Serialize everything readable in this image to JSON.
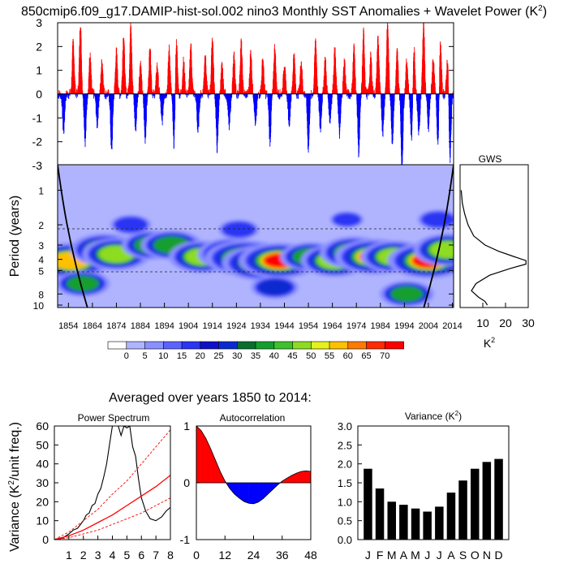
{
  "title": "850cmip6.f09_g17.DAMIP-hist-sol.002 nino3 Monthly SST Anomalies + Wavelet Power (K",
  "title_sup": "2",
  "title_close": ")",
  "subtitle": "Averaged over years 1850 to 2014:",
  "colors": {
    "positive": "#ff0000",
    "negative": "#0000ff",
    "grid": "#000000"
  },
  "chart_data": [
    {
      "id": "anomalies",
      "type": "bar",
      "x_range": [
        1850,
        2014
      ],
      "ylim": [
        -3,
        3
      ],
      "yticks": [
        "-3",
        "-2",
        "-1",
        "0",
        "1",
        "2",
        "3"
      ],
      "note": "monthly anomaly bars; positive red, negative blue",
      "events": [
        {
          "year": 1856,
          "value": 2.2
        },
        {
          "year": 1859,
          "value": 3.0
        },
        {
          "year": 1863,
          "value": 1.6
        },
        {
          "year": 1868,
          "value": 1.4
        },
        {
          "year": 1874,
          "value": 1.8
        },
        {
          "year": 1877,
          "value": 2.5
        },
        {
          "year": 1880,
          "value": 3.0
        },
        {
          "year": 1884,
          "value": 1.3
        },
        {
          "year": 1888,
          "value": 2.0
        },
        {
          "year": 1891,
          "value": 1.2
        },
        {
          "year": 1896,
          "value": 1.9
        },
        {
          "year": 1899,
          "value": 2.3
        },
        {
          "year": 1902,
          "value": 1.4
        },
        {
          "year": 1905,
          "value": 2.1
        },
        {
          "year": 1911,
          "value": 1.7
        },
        {
          "year": 1914,
          "value": 2.4
        },
        {
          "year": 1918,
          "value": 1.2
        },
        {
          "year": 1923,
          "value": 1.6
        },
        {
          "year": 1926,
          "value": 2.2
        },
        {
          "year": 1930,
          "value": 1.8
        },
        {
          "year": 1935,
          "value": 1.5
        },
        {
          "year": 1940,
          "value": 2.0
        },
        {
          "year": 1944,
          "value": 1.3
        },
        {
          "year": 1948,
          "value": 1.7
        },
        {
          "year": 1951,
          "value": 1.4
        },
        {
          "year": 1957,
          "value": 2.3
        },
        {
          "year": 1961,
          "value": 1.5
        },
        {
          "year": 1965,
          "value": 1.9
        },
        {
          "year": 1969,
          "value": 1.4
        },
        {
          "year": 1973,
          "value": 2.0
        },
        {
          "year": 1977,
          "value": 2.6
        },
        {
          "year": 1980,
          "value": 1.6
        },
        {
          "year": 1983,
          "value": 2.4
        },
        {
          "year": 1987,
          "value": 3.0
        },
        {
          "year": 1991,
          "value": 1.8
        },
        {
          "year": 1995,
          "value": 1.4
        },
        {
          "year": 1998,
          "value": 2.0
        },
        {
          "year": 2002,
          "value": 3.0
        },
        {
          "year": 2006,
          "value": 1.5
        },
        {
          "year": 2009,
          "value": 2.2
        },
        {
          "year": 2012,
          "value": 1.6
        },
        {
          "year": 1852,
          "value": -1.6
        },
        {
          "year": 1861,
          "value": -2.0
        },
        {
          "year": 1866,
          "value": -1.3
        },
        {
          "year": 1872,
          "value": -2.4
        },
        {
          "year": 1882,
          "value": -1.5
        },
        {
          "year": 1886,
          "value": -1.9
        },
        {
          "year": 1893,
          "value": -1.2
        },
        {
          "year": 1898,
          "value": -2.2
        },
        {
          "year": 1908,
          "value": -1.6
        },
        {
          "year": 1916,
          "value": -2.3
        },
        {
          "year": 1921,
          "value": -1.4
        },
        {
          "year": 1932,
          "value": -1.3
        },
        {
          "year": 1938,
          "value": -2.0
        },
        {
          "year": 1946,
          "value": -1.2
        },
        {
          "year": 1954,
          "value": -2.3
        },
        {
          "year": 1959,
          "value": -1.5
        },
        {
          "year": 1963,
          "value": -1.1
        },
        {
          "year": 1967,
          "value": -1.7
        },
        {
          "year": 1975,
          "value": -2.5
        },
        {
          "year": 1985,
          "value": -1.6
        },
        {
          "year": 1989,
          "value": -2.0
        },
        {
          "year": 1993,
          "value": -3.0
        },
        {
          "year": 1997,
          "value": -1.9
        },
        {
          "year": 2000,
          "value": -1.7
        },
        {
          "year": 2004,
          "value": -1.5
        },
        {
          "year": 2008,
          "value": -2.1
        },
        {
          "year": 2013,
          "value": -2.8
        }
      ]
    },
    {
      "id": "wavelet",
      "type": "heatmap",
      "ylabel": "Period (years)",
      "yticks": [
        "1",
        "2",
        "3",
        "4",
        "5",
        "8",
        "10"
      ],
      "xticks": [
        "1854",
        "1864",
        "1874",
        "1884",
        "1894",
        "1904",
        "1914",
        "1924",
        "1934",
        "1944",
        "1954",
        "1964",
        "1974",
        "1984",
        "1994",
        "2004",
        "2014"
      ],
      "yscale": "log",
      "dashed_periods": [
        2,
        5
      ]
    },
    {
      "id": "gws",
      "type": "line",
      "title": "GWS",
      "xlabel": "K",
      "xlabel_sup": "2",
      "xticks": [
        "10",
        "20",
        "30"
      ],
      "x_range": [
        0,
        30
      ],
      "period": [
        1,
        1.3,
        1.6,
        2,
        2.5,
        3,
        3.4,
        3.8,
        4.1,
        4.4,
        4.8,
        5.5,
        6.5,
        7.5,
        8.5,
        9.3,
        10
      ],
      "power": [
        0.5,
        1,
        2,
        3.5,
        6,
        11,
        17,
        24,
        29,
        29,
        22,
        13,
        7,
        5,
        8,
        11,
        12
      ]
    },
    {
      "id": "colorbar",
      "type": "heatmap",
      "labels": [
        "0",
        "5",
        "10",
        "15",
        "20",
        "25",
        "30",
        "35",
        "40",
        "45",
        "50",
        "55",
        "60",
        "65",
        "70"
      ],
      "colors": [
        "#ffffff",
        "#b0b4ff",
        "#8a90ff",
        "#5b63ff",
        "#2b35f4",
        "#1010c8",
        "#0a2ad0",
        "#0a6e2e",
        "#159e2e",
        "#3cc22c",
        "#8ddc22",
        "#e6f01c",
        "#ffc000",
        "#ff7a00",
        "#ff2a00",
        "#ff0000"
      ]
    },
    {
      "id": "power_spectrum",
      "type": "line",
      "title": "Power Spectrum",
      "ylabel": "Variance (K",
      "ylabel_sup": "2",
      "ylabel_tail": "/unit freq.)",
      "xticks": [
        "1",
        "2",
        "3",
        "4",
        "5",
        "6",
        "7",
        "8"
      ],
      "yticks": [
        "0",
        "10",
        "20",
        "30",
        "40",
        "50",
        "60"
      ],
      "xlim": [
        0,
        8
      ],
      "ylim": [
        0,
        60
      ],
      "series": [
        {
          "style": "black",
          "x": [
            0.3,
            0.6,
            1,
            1.3,
            1.6,
            2,
            2.2,
            2.4,
            2.6,
            2.8,
            3,
            3.2,
            3.4,
            3.6,
            3.8,
            4,
            4.2,
            4.4,
            4.6,
            4.8,
            5,
            5.2,
            5.4,
            5.6,
            5.8,
            6,
            6.3,
            6.6,
            7,
            7.4,
            7.7,
            8
          ],
          "y": [
            0.3,
            1,
            3,
            5,
            6,
            10,
            13,
            14,
            18,
            19,
            24,
            27,
            33,
            40,
            50,
            60,
            60,
            60,
            55,
            60,
            59,
            60,
            49,
            44,
            32,
            22,
            15,
            11,
            10,
            12,
            15,
            17
          ]
        },
        {
          "style": "red",
          "x": [
            0,
            1,
            2,
            3,
            4,
            5,
            6,
            7,
            8
          ],
          "y": [
            0,
            2,
            5,
            9,
            13,
            18,
            23,
            28,
            34
          ]
        },
        {
          "style": "red-dashed",
          "x": [
            0,
            1,
            2,
            3,
            4,
            5,
            6,
            7,
            8
          ],
          "y": [
            0,
            4,
            10,
            16,
            24,
            31,
            40,
            49,
            58
          ]
        },
        {
          "style": "red-dashed",
          "x": [
            0,
            1,
            2,
            3,
            4,
            5,
            6,
            7,
            8
          ],
          "y": [
            0,
            1,
            3,
            5,
            8,
            11,
            14,
            18,
            22
          ]
        }
      ]
    },
    {
      "id": "autocorrelation",
      "type": "area",
      "title": "Autocorrelation",
      "xticks": [
        "0",
        "12",
        "24",
        "36",
        "48"
      ],
      "yticks": [
        "-1",
        "0",
        "1"
      ],
      "xlim": [
        0,
        48
      ],
      "ylim": [
        -1,
        1
      ],
      "x": [
        0,
        2,
        4,
        6,
        8,
        10,
        12,
        14,
        16,
        18,
        20,
        22,
        24,
        26,
        28,
        30,
        32,
        34,
        36,
        38,
        40,
        42,
        44,
        46,
        48
      ],
      "y": [
        1,
        0.92,
        0.78,
        0.6,
        0.4,
        0.2,
        0.03,
        -0.1,
        -0.2,
        -0.27,
        -0.33,
        -0.36,
        -0.37,
        -0.34,
        -0.28,
        -0.2,
        -0.12,
        -0.04,
        0.03,
        0.08,
        0.13,
        0.17,
        0.2,
        0.21,
        0.2
      ]
    },
    {
      "id": "monthly_variance",
      "type": "bar",
      "title": "Variance (K",
      "title_sup": "2",
      "title_close": ")",
      "categories": [
        "J",
        "F",
        "M",
        "A",
        "M",
        "J",
        "J",
        "A",
        "S",
        "O",
        "N",
        "D"
      ],
      "values": [
        1.87,
        1.35,
        1.0,
        0.92,
        0.82,
        0.74,
        0.87,
        1.24,
        1.56,
        1.87,
        2.05,
        2.13
      ],
      "yticks": [
        "0.0",
        "0.5",
        "1.0",
        "1.5",
        "2.0",
        "2.5",
        "3.0"
      ],
      "ylim": [
        0,
        3
      ]
    }
  ]
}
